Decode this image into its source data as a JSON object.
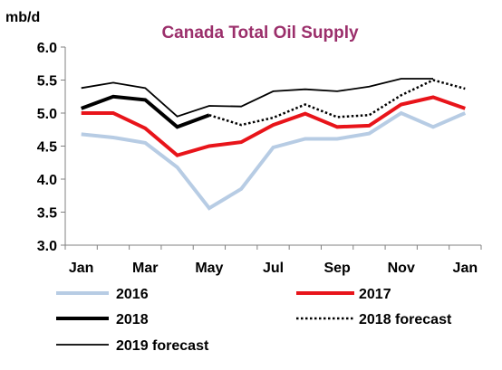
{
  "chart_data": {
    "type": "line",
    "title": "Canada Total Oil Supply",
    "ylabel": "mb/d",
    "xlabel": "",
    "ylim": [
      3.0,
      6.0
    ],
    "yticks": [
      "3.0",
      "3.5",
      "4.0",
      "4.5",
      "5.0",
      "5.5",
      "6.0"
    ],
    "x": [
      "Jan",
      "Feb",
      "Mar",
      "Apr",
      "May",
      "Jun",
      "Jul",
      "Aug",
      "Sep",
      "Oct",
      "Nov",
      "Dec",
      "Jan"
    ],
    "xtick_labels": [
      "Jan",
      "",
      "Mar",
      "",
      "May",
      "",
      "Jul",
      "",
      "Sep",
      "",
      "Nov",
      "",
      "Jan"
    ],
    "grid": "none",
    "legend_position": "bottom",
    "series": [
      {
        "name": "2016",
        "color": "#b7cce4",
        "style": "thick",
        "values": [
          4.68,
          4.63,
          4.55,
          4.18,
          3.56,
          3.85,
          4.48,
          4.61,
          4.61,
          4.69,
          5.0,
          4.79,
          5.0
        ]
      },
      {
        "name": "2017",
        "color": "#e8141a",
        "style": "thick",
        "values": [
          5.0,
          5.0,
          4.77,
          4.36,
          4.5,
          4.56,
          4.82,
          4.99,
          4.79,
          4.81,
          5.13,
          5.24,
          5.07
        ]
      },
      {
        "name": "2018",
        "color": "#000000",
        "style": "thick",
        "values": [
          5.07,
          5.25,
          5.2,
          4.79,
          4.97,
          null,
          null,
          null,
          null,
          null,
          null,
          null,
          null
        ]
      },
      {
        "name": "2018 forecast",
        "color": "#000000",
        "style": "dotted",
        "values": [
          null,
          null,
          null,
          null,
          4.97,
          4.82,
          4.93,
          5.13,
          4.94,
          4.97,
          5.27,
          5.5,
          5.37
        ]
      },
      {
        "name": "2019 forecast",
        "color": "#000000",
        "style": "thin",
        "values": [
          5.38,
          5.46,
          5.38,
          4.95,
          5.11,
          5.1,
          5.33,
          5.36,
          5.33,
          5.4,
          5.52,
          5.52,
          null
        ]
      }
    ]
  }
}
